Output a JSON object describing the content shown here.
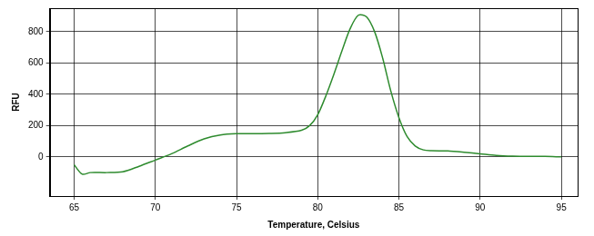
{
  "chart_data": {
    "type": "line",
    "x_label": "Temperature, Celsius",
    "y_label": "RFU",
    "series": [
      {
        "name": "RFU",
        "color": "#2e8b2e",
        "x": [
          65,
          65.5,
          66,
          67,
          68,
          69,
          70,
          71,
          72,
          73,
          74,
          75,
          76,
          77,
          78,
          79,
          79.5,
          80,
          80.5,
          81,
          81.5,
          82,
          82.5,
          83,
          83.5,
          84,
          84.5,
          85,
          85.5,
          86,
          86.5,
          87,
          88,
          89,
          90,
          91,
          92,
          93,
          94,
          95
        ],
        "values": [
          -50,
          -110,
          -100,
          -100,
          -95,
          -60,
          -20,
          20,
          70,
          115,
          140,
          148,
          148,
          150,
          155,
          170,
          200,
          270,
          390,
          530,
          680,
          820,
          905,
          895,
          800,
          630,
          420,
          250,
          130,
          70,
          45,
          40,
          38,
          30,
          20,
          10,
          5,
          3,
          3,
          0
        ]
      }
    ],
    "xlim": [
      63.5,
      96
    ],
    "xticks": [
      65,
      70,
      75,
      80,
      85,
      90,
      95
    ],
    "ylim": [
      -250,
      950
    ],
    "yticks": [
      0,
      200,
      400,
      600,
      800
    ],
    "grid": true
  }
}
